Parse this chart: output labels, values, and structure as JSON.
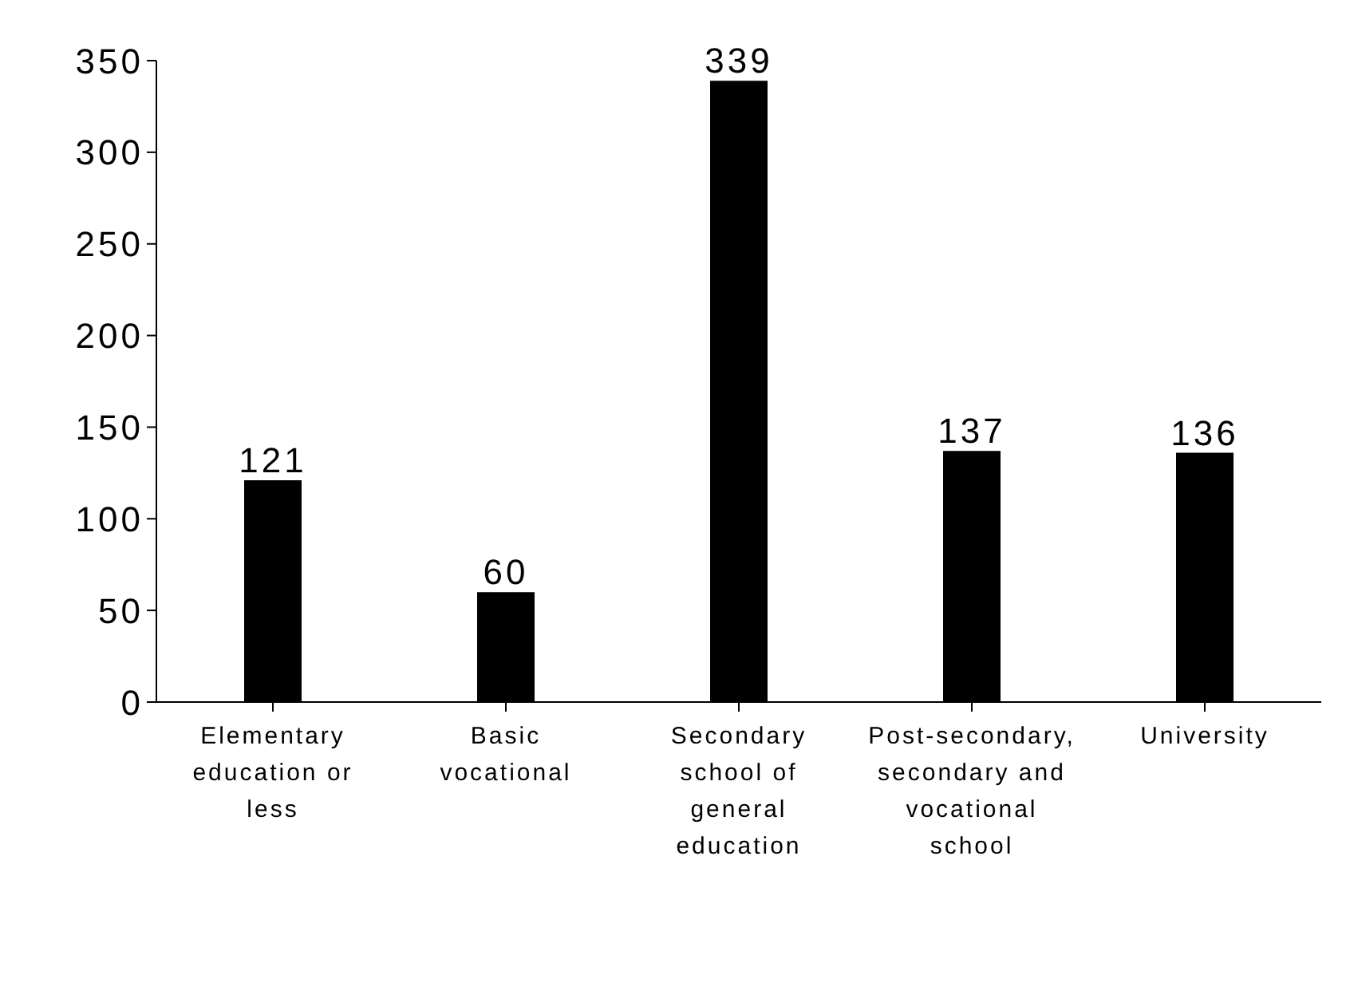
{
  "chart_data": {
    "type": "bar",
    "categories": [
      "Elementary education or less",
      "Basic vocational",
      "Secondary school of general education",
      "Post-secondary, secondary and vocational school",
      "University"
    ],
    "values": [
      121,
      60,
      339,
      137,
      136
    ],
    "color": "#000000",
    "ylim": [
      0,
      350
    ],
    "yticks": [
      0,
      50,
      100,
      150,
      200,
      250,
      300,
      350
    ],
    "data_labels": true,
    "grid": false,
    "legend": false
  }
}
